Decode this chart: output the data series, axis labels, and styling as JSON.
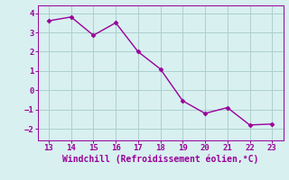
{
  "x": [
    13,
    14,
    15,
    16,
    17,
    18,
    19,
    20,
    21,
    22,
    23
  ],
  "y": [
    3.6,
    3.8,
    2.85,
    3.5,
    2.0,
    1.1,
    -0.55,
    -1.2,
    -0.9,
    -1.8,
    -1.75
  ],
  "line_color": "#990099",
  "marker": "D",
  "marker_size": 2.5,
  "bg_color": "#d8f0f0",
  "grid_color": "#aecece",
  "xlabel": "Windchill (Refroidissement éolien,°C)",
  "xlabel_color": "#990099",
  "tick_color": "#990099",
  "spine_color": "#990099",
  "xlim": [
    12.5,
    23.5
  ],
  "ylim": [
    -2.6,
    4.4
  ],
  "yticks": [
    -2,
    -1,
    0,
    1,
    2,
    3,
    4
  ],
  "xticks": [
    13,
    14,
    15,
    16,
    17,
    18,
    19,
    20,
    21,
    22,
    23
  ],
  "tick_fontsize": 6.5,
  "xlabel_fontsize": 7.0
}
